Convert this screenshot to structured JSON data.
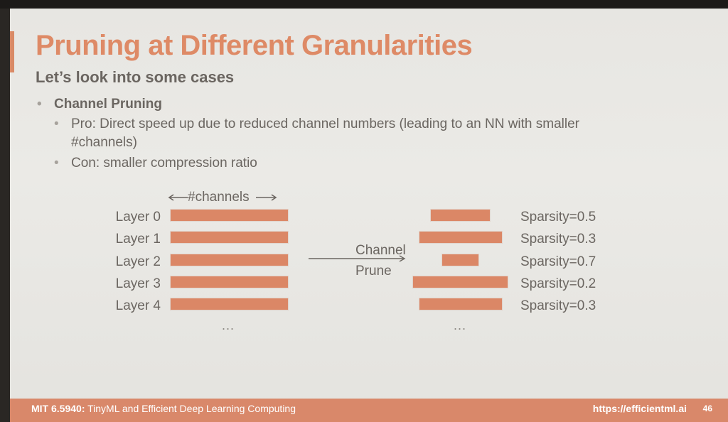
{
  "slide": {
    "title": "Pruning at Different Granularities",
    "subtitle": "Let’s look into some cases",
    "bullet": "Channel Pruning",
    "pro_line1": "Pro: Direct speed up due to reduced channel numbers (leading to an NN with smaller",
    "pro_line2": "#channels)",
    "con": "Con: smaller compression ratio"
  },
  "diagram": {
    "channels_label": "#channels",
    "arrow_top": "Channel",
    "arrow_bottom": "Prune",
    "ellipsis": "...",
    "layers": [
      {
        "label": "Layer 0",
        "sparsity": "Sparsity=0.5",
        "sparsity_value": 0.5
      },
      {
        "label": "Layer 1",
        "sparsity": "Sparsity=0.3",
        "sparsity_value": 0.3
      },
      {
        "label": "Layer 2",
        "sparsity": "Sparsity=0.7",
        "sparsity_value": 0.7
      },
      {
        "label": "Layer 3",
        "sparsity": "Sparsity=0.2",
        "sparsity_value": 0.2
      },
      {
        "label": "Layer 4",
        "sparsity": "Sparsity=0.3",
        "sparsity_value": 0.3
      }
    ]
  },
  "footer": {
    "course_code": "MIT 6.5940:",
    "course_name": "TinyML and Efficient Deep Learning Computing",
    "url": "https://efficientml.ai",
    "page": "46"
  },
  "colors": {
    "accent": "#de8a66",
    "bar": "#db8766",
    "text": "#6b6661"
  }
}
